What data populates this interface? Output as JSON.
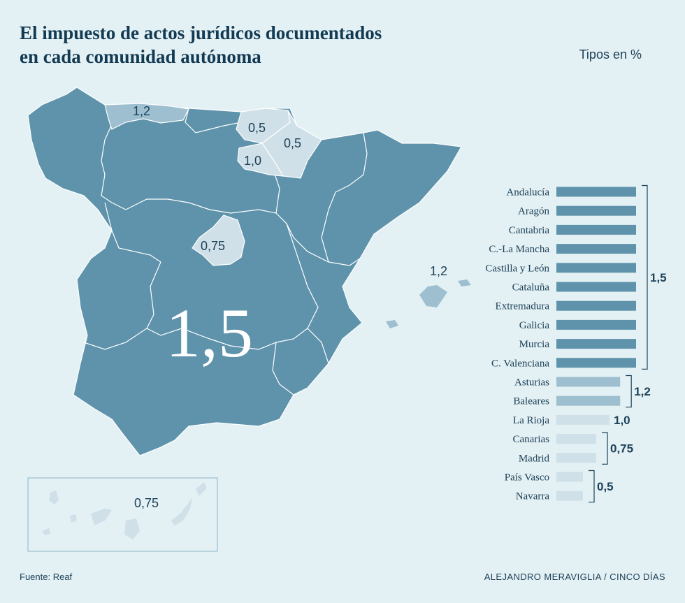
{
  "title_line1": "El impuesto de actos jurídicos documentados",
  "title_line2": "en cada comunidad autónoma",
  "unit_label": "Tipos en %",
  "source": "Fuente: Reaf",
  "credit": "ALEJANDRO MERAVIGLIA / CINCO DÍAS",
  "colors": {
    "background": "#e3f0f4",
    "tier_1_5": "#5e93ab",
    "tier_1_2": "#9dbfd0",
    "tier_low": "#cfe0e8",
    "border": "#ffffff",
    "text": "#1e4258"
  },
  "map_labels": {
    "main": "1,5",
    "cantabria_asturias": "1,2",
    "pais_vasco": "0,5",
    "navarra": "0,5",
    "la_rioja": "1,0",
    "madrid": "0,75",
    "baleares": "1,2",
    "canarias": "0,75"
  },
  "chart_data": {
    "type": "bar",
    "orientation": "horizontal",
    "categories": [
      "Andalucía",
      "Aragón",
      "Cantabria",
      "C.-La Mancha",
      "Castilla y León",
      "Cataluña",
      "Extremadura",
      "Galicia",
      "Murcia",
      "C. Valenciana",
      "Asturias",
      "Baleares",
      "La Rioja",
      "Canarias",
      "Madrid",
      "País Vasco",
      "Navarra"
    ],
    "values": [
      1.5,
      1.5,
      1.5,
      1.5,
      1.5,
      1.5,
      1.5,
      1.5,
      1.5,
      1.5,
      1.2,
      1.2,
      1.0,
      0.75,
      0.75,
      0.5,
      0.5
    ],
    "group_labels": [
      {
        "label": "1,5",
        "from": 0,
        "to": 9
      },
      {
        "label": "1,2",
        "from": 10,
        "to": 11
      },
      {
        "label": "1,0",
        "from": 12,
        "to": 12
      },
      {
        "label": "0,75",
        "from": 13,
        "to": 14
      },
      {
        "label": "0,5",
        "from": 15,
        "to": 16
      }
    ],
    "title": "El impuesto de actos jurídicos documentados en cada comunidad autónoma",
    "ylabel": "Tipos en %",
    "xlim": [
      0,
      1.5
    ]
  }
}
